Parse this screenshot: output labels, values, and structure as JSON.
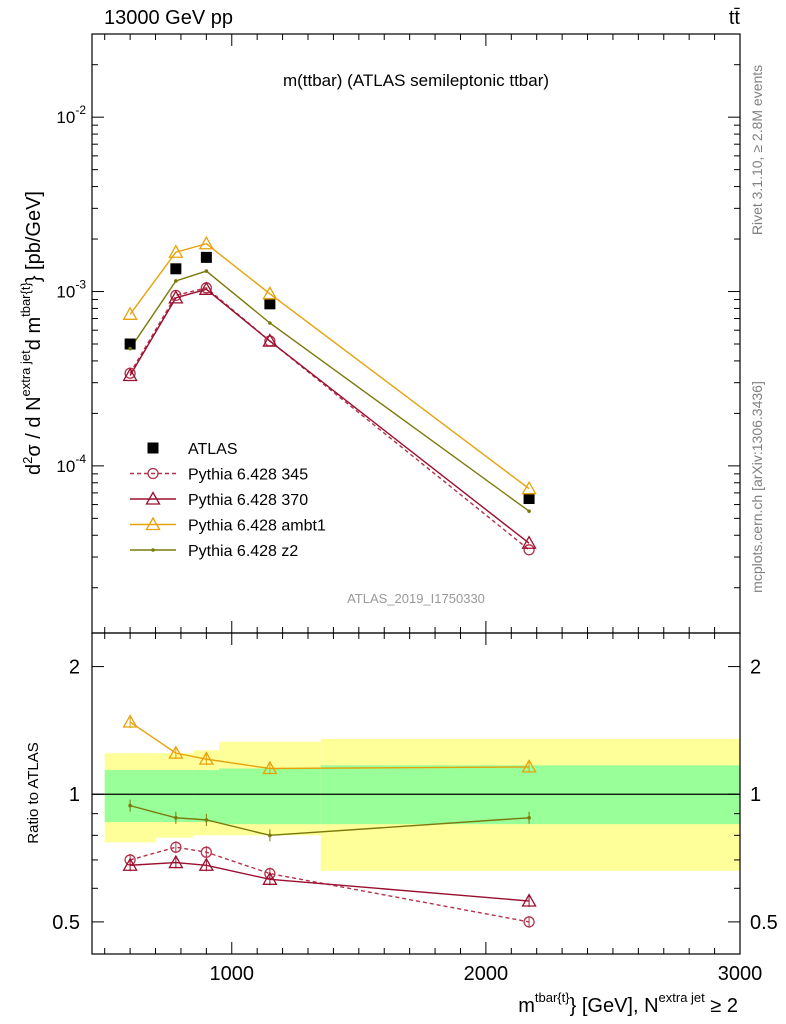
{
  "header": {
    "left": "13000 GeV pp",
    "right": "tt̄"
  },
  "side_texts": {
    "rivet": "Rivet 3.1.10, ≥ 2.8M events",
    "mcplots": "mcplots.cern.ch [arXiv:1306.3436]"
  },
  "chart_data": [
    {
      "type": "line",
      "title": "m(ttbar) (ATLAS semileptonic ttbar)",
      "watermark": "ATLAS_2019_I1750330",
      "ylabel": "d²σ / d N^{extra jet} d m^{tbar{t}} [pb/GeV]",
      "ylabel_parts": [
        "d",
        "2",
        "σ  /  d N",
        "extra jet",
        "d m",
        "tbar{t}",
        "} [pb/GeV]"
      ],
      "yscale": "log",
      "xlim": [
        450,
        3000
      ],
      "ylim": [
        1.1e-05,
        0.03
      ],
      "ytick_labels": [
        {
          "base": "10",
          "exp": "-4",
          "value": 0.0001
        },
        {
          "base": "10",
          "exp": "-3",
          "value": 0.001
        },
        {
          "base": "10",
          "exp": "-2",
          "value": 0.01
        }
      ],
      "legend_placement": "lower-left",
      "x": [
        600,
        780,
        900,
        1150,
        2170
      ],
      "series": [
        {
          "name": "ATLAS",
          "color": "#000000",
          "marker": "square",
          "values": [
            0.0005,
            0.00135,
            0.00157,
            0.00085,
            6.5e-05
          ]
        },
        {
          "name": "Pythia 6.428 345",
          "color": "#b2324b",
          "marker": "open-circle",
          "dashed": true,
          "values": [
            0.00034,
            0.00095,
            0.00105,
            0.00052,
            3.3e-05
          ]
        },
        {
          "name": "Pythia 6.428 370",
          "color": "#9a0e2f",
          "marker": "open-triangle",
          "values": [
            0.00033,
            0.00092,
            0.00103,
            0.00052,
            3.6e-05
          ]
        },
        {
          "name": "Pythia 6.428 ambt1",
          "color": "#e8a10a",
          "marker": "open-triangle",
          "values": [
            0.00074,
            0.00168,
            0.00188,
            0.00097,
            7.4e-05
          ]
        },
        {
          "name": "Pythia 6.428 z2",
          "color": "#7a7a0b",
          "marker": "dot",
          "values": [
            0.00047,
            0.00115,
            0.00131,
            0.00066,
            5.5e-05
          ]
        }
      ]
    },
    {
      "type": "line",
      "ylabel": "Ratio to ATLAS",
      "yscale": "log",
      "xlim": [
        450,
        3000
      ],
      "ylim": [
        0.42,
        2.4
      ],
      "yticks": [
        0.5,
        1,
        2
      ],
      "ytick_labels": [
        "0.5",
        "1",
        "2"
      ],
      "xticks": [
        1000,
        2000,
        3000
      ],
      "xtick_labels": [
        "1000",
        "2000",
        "3000"
      ],
      "xlabel_parts": [
        "m",
        "tbar{t}",
        "} [GeV], N",
        "extra jet",
        " ≥ 2"
      ],
      "x": [
        600,
        780,
        900,
        1150,
        2170
      ],
      "bands": {
        "edges": [
          500,
          700,
          850,
          950,
          1350,
          3000
        ],
        "stat": {
          "color": "#99ff99",
          "low": [
            0.86,
            0.86,
            0.86,
            0.85,
            0.85
          ],
          "high": [
            1.14,
            1.14,
            1.14,
            1.15,
            1.17
          ]
        },
        "total": {
          "color": "#ffff99",
          "low": [
            0.77,
            0.79,
            0.8,
            0.8,
            0.66
          ],
          "high": [
            1.25,
            1.25,
            1.27,
            1.33,
            1.35
          ]
        }
      },
      "series": [
        {
          "name": "Pythia 6.428 345",
          "color": "#b2324b",
          "marker": "open-circle",
          "dashed": true,
          "values": [
            0.7,
            0.75,
            0.73,
            0.65,
            0.5
          ]
        },
        {
          "name": "Pythia 6.428 370",
          "color": "#9a0e2f",
          "marker": "open-triangle",
          "values": [
            0.68,
            0.69,
            0.68,
            0.63,
            0.56
          ]
        },
        {
          "name": "Pythia 6.428 ambt1",
          "color": "#e8a10a",
          "marker": "open-triangle",
          "values": [
            1.48,
            1.25,
            1.21,
            1.15,
            1.16
          ]
        },
        {
          "name": "Pythia 6.428 z2",
          "color": "#7a7a0b",
          "marker": "dot",
          "values": [
            0.94,
            0.88,
            0.87,
            0.8,
            0.88
          ]
        }
      ]
    }
  ]
}
